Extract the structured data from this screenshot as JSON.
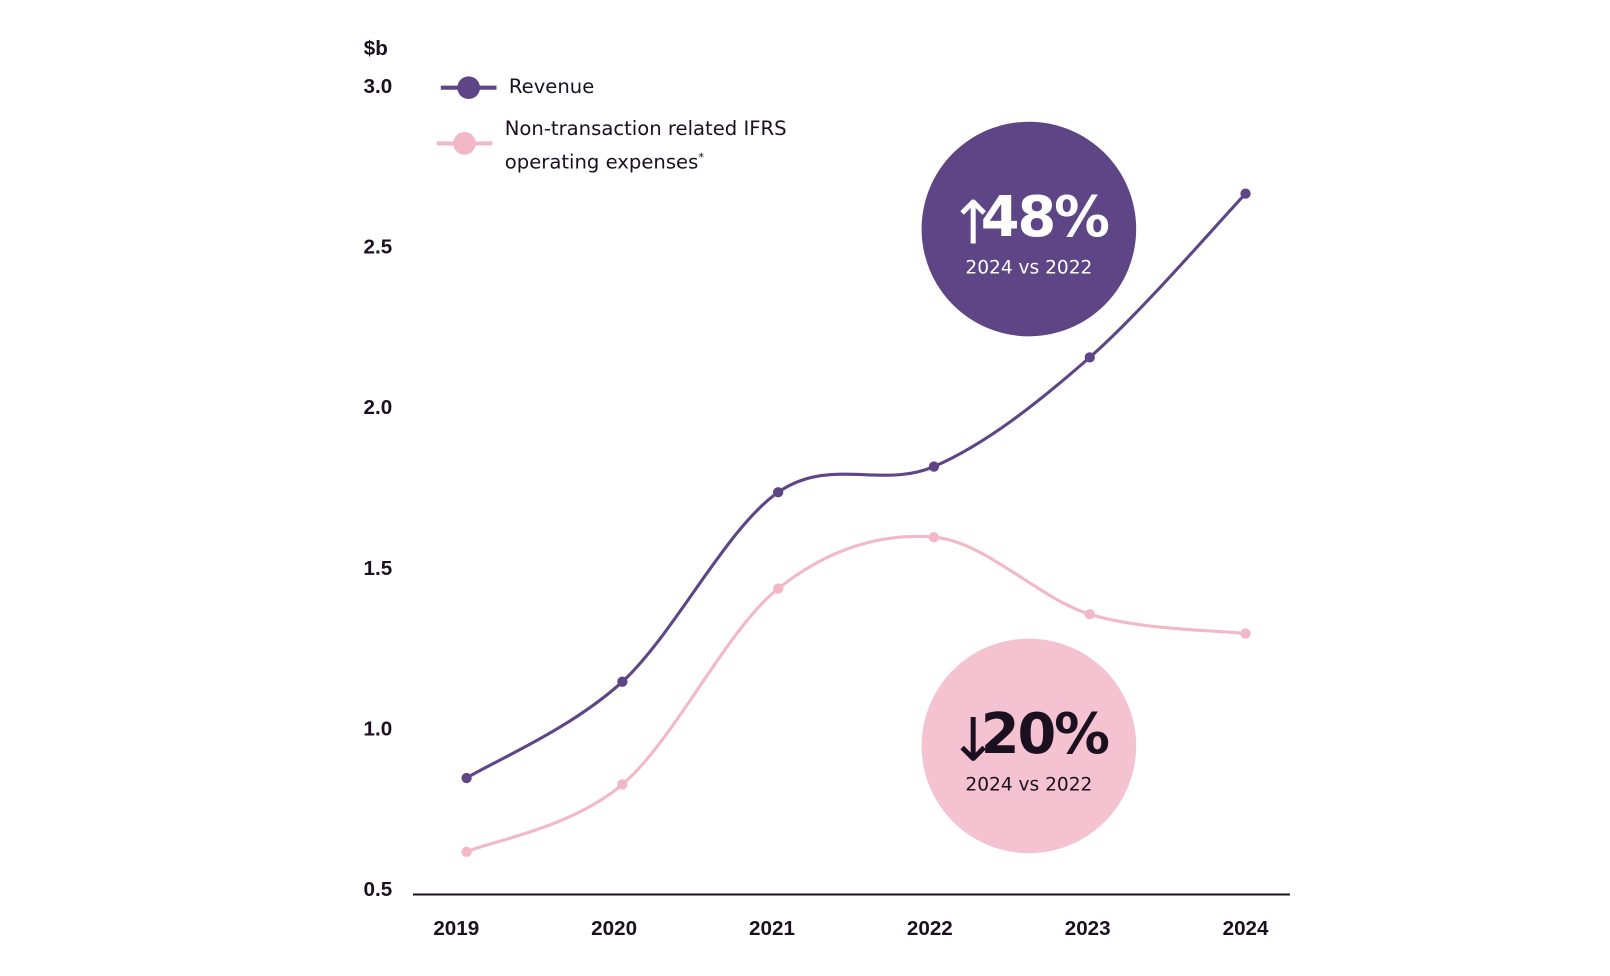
{
  "chart_data": {
    "type": "line",
    "y_unit_label": "$b",
    "categories": [
      "2019",
      "2020",
      "2021",
      "2022",
      "2023",
      "2024"
    ],
    "series": [
      {
        "name": "Revenue",
        "color": "#5e4585",
        "values": [
          0.85,
          1.15,
          1.74,
          1.82,
          2.16,
          2.67
        ]
      },
      {
        "name": "Non-transaction related IFRS operating expenses",
        "footnote_mark": "*",
        "color": "#f2b8c8",
        "values": [
          0.62,
          0.83,
          1.44,
          1.6,
          1.36,
          1.3
        ]
      }
    ],
    "ylim": [
      0.5,
      3.0
    ],
    "yticks": [
      {
        "value": 3,
        "label": "3.0"
      },
      2.5,
      {
        "value": 2,
        "label": "2.0"
      },
      1.5,
      {
        "value": 1,
        "label": "1.0"
      },
      0.5
    ],
    "grid": false,
    "annotations": [
      {
        "arrow": "↑",
        "text": "48%",
        "subtitle": "2024 vs 2022",
        "color": "#5e4585",
        "text_color": "#ffffff"
      },
      {
        "arrow": "↓",
        "text": "20%",
        "subtitle": "2024 vs 2022",
        "color": "#f4c2d0",
        "text_color": "#1a1020"
      }
    ]
  }
}
